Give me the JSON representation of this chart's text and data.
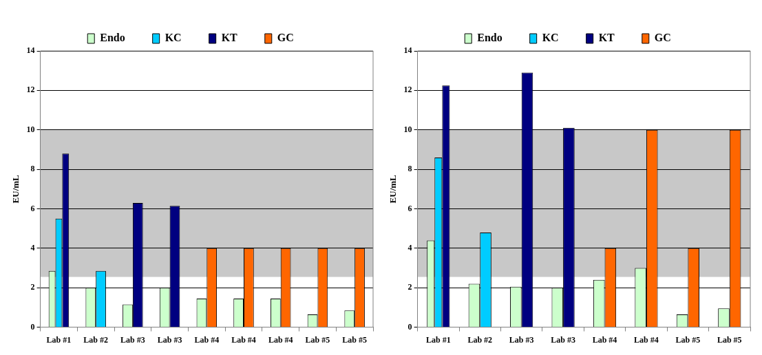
{
  "chart_data": [
    {
      "type": "bar",
      "categories": [
        "Lab #1",
        "Lab #2",
        "Lab #3",
        "Lab #3",
        "Lab #4",
        "Lab #4",
        "Lab #4",
        "Lab #5",
        "Lab #5"
      ],
      "ylabel": "EU/mL",
      "ylim": [
        0,
        14
      ],
      "yticks": [
        0,
        2,
        4,
        6,
        8,
        10,
        12,
        14
      ],
      "grid": "y",
      "legend": "top",
      "bands": [
        {
          "axis": "y",
          "from": 2.55,
          "to": 10,
          "color": "#c8c8c8"
        }
      ],
      "series": [
        {
          "name": "Endo",
          "color": "#ccffcc",
          "values": [
            2.85,
            2.0,
            1.15,
            2.0,
            1.45,
            1.45,
            1.45,
            0.65,
            0.85
          ]
        },
        {
          "name": "KC",
          "color": "#00ccff",
          "values": [
            5.5,
            2.85,
            null,
            null,
            null,
            null,
            null,
            null,
            null
          ]
        },
        {
          "name": "KT",
          "color": "#000080",
          "values": [
            8.8,
            null,
            6.3,
            6.15,
            null,
            null,
            null,
            null,
            null
          ]
        },
        {
          "name": "GC",
          "color": "#ff6600",
          "values": [
            null,
            null,
            null,
            null,
            4,
            4,
            4,
            4,
            4
          ]
        }
      ]
    },
    {
      "type": "bar",
      "categories": [
        "Lab #1",
        "Lab #2",
        "Lab #3",
        "Lab #3",
        "Lab #4",
        "Lab #4",
        "Lab #5",
        "Lab #5"
      ],
      "ylabel": "EU/mL",
      "ylim": [
        0,
        14
      ],
      "yticks": [
        0,
        2,
        4,
        6,
        8,
        10,
        12,
        14
      ],
      "grid": "y",
      "legend": "top",
      "bands": [
        {
          "axis": "y",
          "from": 2.55,
          "to": 10,
          "color": "#c8c8c8"
        }
      ],
      "series": [
        {
          "name": "Endo",
          "color": "#ccffcc",
          "values": [
            4.4,
            2.2,
            2.05,
            2.0,
            2.4,
            3.0,
            0.65,
            0.95
          ]
        },
        {
          "name": "KC",
          "color": "#00ccff",
          "values": [
            8.6,
            4.8,
            null,
            null,
            null,
            null,
            null,
            null
          ]
        },
        {
          "name": "KT",
          "color": "#000080",
          "values": [
            12.25,
            null,
            12.9,
            10.1,
            null,
            null,
            null,
            null
          ]
        },
        {
          "name": "GC",
          "color": "#ff6600",
          "values": [
            null,
            null,
            null,
            null,
            4,
            10,
            4,
            10
          ]
        }
      ]
    }
  ]
}
